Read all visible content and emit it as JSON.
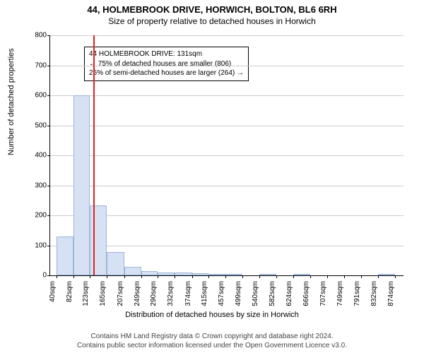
{
  "header": {
    "title": "44, HOLMEBROOK DRIVE, HORWICH, BOLTON, BL6 6RH",
    "subtitle": "Size of property relative to detached houses in Horwich"
  },
  "chart": {
    "type": "histogram",
    "ylabel": "Number of detached properties",
    "xlabel": "Distribution of detached houses by size in Horwich",
    "ylim_max": 800,
    "ytick_step": 100,
    "grid_color": "#cccccc",
    "bar_fill": "#d6e2f3",
    "bar_border": "#9cb5db",
    "ref_line_color": "#e02020",
    "ref_line_x": 131,
    "x_min": 25,
    "x_max": 895,
    "xticks": [
      40,
      82,
      123,
      165,
      207,
      249,
      290,
      332,
      374,
      415,
      457,
      499,
      540,
      582,
      624,
      666,
      707,
      749,
      791,
      832,
      874
    ],
    "xtick_suffix": "sqm",
    "bars": [
      {
        "x0": 40,
        "x1": 82,
        "value": 130
      },
      {
        "x0": 82,
        "x1": 123,
        "value": 600
      },
      {
        "x0": 123,
        "x1": 165,
        "value": 232
      },
      {
        "x0": 165,
        "x1": 207,
        "value": 78
      },
      {
        "x0": 207,
        "x1": 249,
        "value": 28
      },
      {
        "x0": 249,
        "x1": 290,
        "value": 15
      },
      {
        "x0": 290,
        "x1": 332,
        "value": 10
      },
      {
        "x0": 332,
        "x1": 374,
        "value": 10
      },
      {
        "x0": 374,
        "x1": 415,
        "value": 8
      },
      {
        "x0": 415,
        "x1": 457,
        "value": 2
      },
      {
        "x0": 457,
        "x1": 499,
        "value": 2
      },
      {
        "x0": 499,
        "x1": 540,
        "value": 0
      },
      {
        "x0": 540,
        "x1": 582,
        "value": 2
      },
      {
        "x0": 582,
        "x1": 624,
        "value": 0
      },
      {
        "x0": 624,
        "x1": 666,
        "value": 2
      },
      {
        "x0": 666,
        "x1": 707,
        "value": 0
      },
      {
        "x0": 707,
        "x1": 749,
        "value": 0
      },
      {
        "x0": 749,
        "x1": 791,
        "value": 0
      },
      {
        "x0": 791,
        "x1": 832,
        "value": 0
      },
      {
        "x0": 832,
        "x1": 874,
        "value": 2
      }
    ],
    "annotation": {
      "line1": "44 HOLMEBROOK DRIVE: 131sqm",
      "line2": "← 75% of detached houses are smaller (806)",
      "line3": "25% of semi-detached houses are larger (264) →"
    }
  },
  "footer": {
    "line1": "Contains HM Land Registry data © Crown copyright and database right 2024.",
    "line2": "Contains public sector information licensed under the Open Government Licence v3.0."
  }
}
